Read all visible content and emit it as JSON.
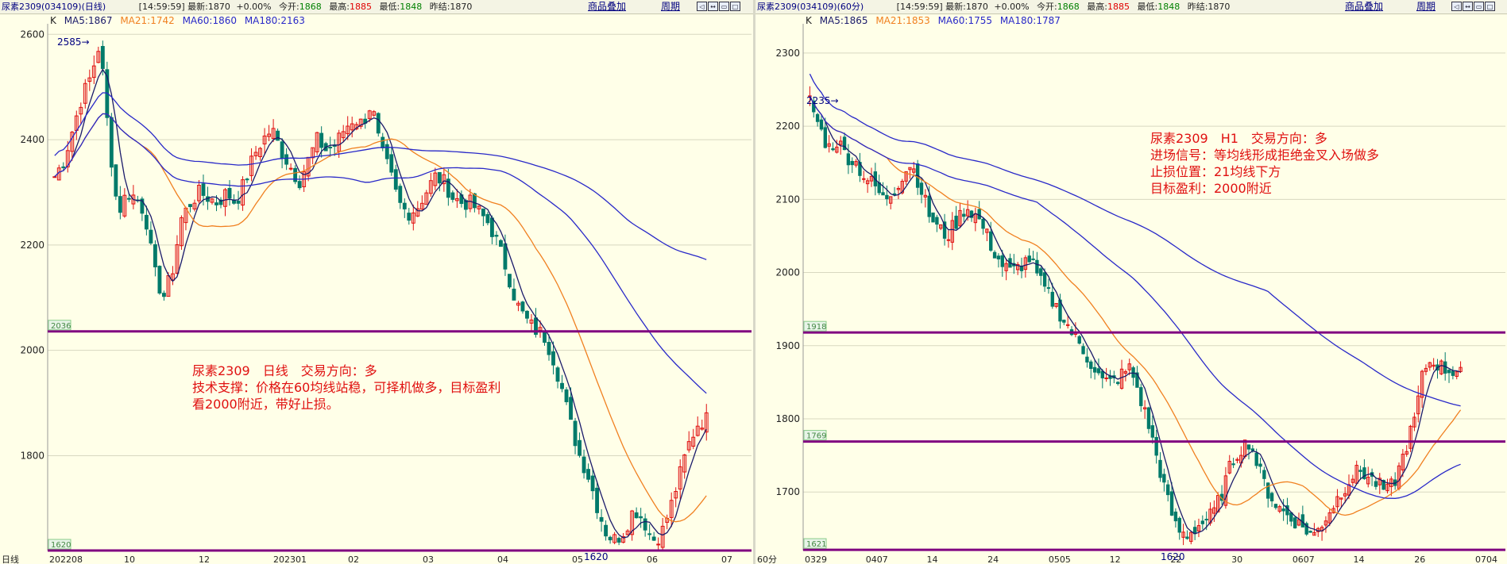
{
  "colors": {
    "bg": "#ffffe8",
    "up": "#e01010",
    "down": "#007a6a",
    "ma5": "#1a1a6a",
    "ma21": "#f08020",
    "ma60": "#2828c8",
    "ma180": "#2828c8",
    "hline": "#800080",
    "annotation": "#e01010"
  },
  "left": {
    "header": {
      "title": "尿素2309(034109)(日线)",
      "time": "[14:59:59]",
      "latest_label": "最新:",
      "latest": "1870",
      "change": "+0.00%",
      "open_label": "今开:",
      "open": "1868",
      "high_label": "最高:",
      "high": "1885",
      "low_label": "最低:",
      "low": "1848",
      "prev_label": "昨结:",
      "prev": "1870",
      "overlay_link": "商品叠加",
      "period_link": "周期"
    },
    "legend": {
      "k": "K",
      "ma5": "MA5:1867",
      "ma21": "MA21:1742",
      "ma60": "MA60:1860",
      "ma180": "MA180:2163"
    },
    "annotation": "尿素2309　日线　交易方向：多\n技术支撑：价格在60均线站稳，可择机做多，目标盈利\n看2000附近，带好止损。"
  },
  "right": {
    "header": {
      "title": "尿素2309(034109)(60分)",
      "time": "[14:59:59]",
      "latest_label": "最新:",
      "latest": "1870",
      "change": "+0.00%",
      "open_label": "今开:",
      "open": "1868",
      "high_label": "最高:",
      "high": "1885",
      "low_label": "最低:",
      "low": "1848",
      "prev_label": "昨结:",
      "prev": "1870",
      "overlay_link": "商品叠加",
      "period_link": "周期"
    },
    "legend": {
      "k": "K",
      "ma5": "MA5:1865",
      "ma21": "MA21:1853",
      "ma60": "MA60:1755",
      "ma180": "MA180:1787"
    },
    "annotation": "尿素2309　H1　交易方向：多\n进场信号：等均线形成拒绝金叉入场做多\n止损位置：21均线下方\n目标盈利：2000附近"
  },
  "chart_data": [
    {
      "type": "candlestick",
      "period": "日线",
      "ylim": [
        1620,
        2620
      ],
      "yticks": [
        1800,
        2000,
        2200,
        2400,
        2600
      ],
      "xticks": [
        "日线",
        "202208",
        "10",
        "12",
        "202301",
        "02",
        "03",
        "04",
        "05",
        "06",
        "07"
      ],
      "hlines": [
        {
          "value": 2036,
          "label": "2036"
        },
        {
          "value": 1620,
          "label": "1620"
        }
      ],
      "markers": [
        {
          "label": "2585",
          "value": 2585
        },
        {
          "label": "1620",
          "value": 1620
        }
      ],
      "close_points": [
        2330,
        2360,
        2420,
        2480,
        2520,
        2585,
        2400,
        2260,
        2300,
        2290,
        2260,
        2150,
        2100,
        2150,
        2250,
        2280,
        2300,
        2290,
        2280,
        2300,
        2280,
        2320,
        2370,
        2400,
        2420,
        2380,
        2350,
        2320,
        2360,
        2400,
        2380,
        2390,
        2420,
        2440,
        2430,
        2470,
        2380,
        2340,
        2280,
        2260,
        2270,
        2300,
        2330,
        2320,
        2290,
        2280,
        2280,
        2260,
        2240,
        2200,
        2150,
        2090,
        2060,
        2040,
        2030,
        1990,
        1930,
        1860,
        1800,
        1760,
        1700,
        1650,
        1640,
        1660,
        1700,
        1680,
        1640,
        1650,
        1700,
        1760,
        1820,
        1860,
        1870
      ]
    },
    {
      "type": "candlestick",
      "period": "60分",
      "ylim": [
        1620,
        2340
      ],
      "yticks": [
        1700,
        1800,
        1900,
        2000,
        2100,
        2200,
        2300
      ],
      "xticks": [
        "60分",
        "0329",
        "0407",
        "14",
        "24",
        "0505",
        "12",
        "22",
        "30",
        "0607",
        "14",
        "26",
        "0704"
      ],
      "hlines": [
        {
          "value": 1918,
          "label": "1918"
        },
        {
          "value": 1769,
          "label": "1769"
        },
        {
          "value": 1621,
          "label": "1621"
        }
      ],
      "markers": [
        {
          "label": "2235",
          "value": 2235
        },
        {
          "label": "1620",
          "value": 1620
        }
      ],
      "close_points": [
        2235,
        2200,
        2170,
        2180,
        2160,
        2150,
        2130,
        2120,
        2100,
        2110,
        2130,
        2150,
        2120,
        2080,
        2060,
        2050,
        2070,
        2090,
        2080,
        2060,
        2030,
        2010,
        2000,
        2010,
        2020,
        1990,
        1970,
        1950,
        1930,
        1910,
        1890,
        1870,
        1850,
        1850,
        1860,
        1870,
        1830,
        1790,
        1740,
        1690,
        1650,
        1640,
        1650,
        1660,
        1670,
        1700,
        1740,
        1760,
        1770,
        1730,
        1700,
        1680,
        1670,
        1660,
        1650,
        1640,
        1660,
        1680,
        1700,
        1720,
        1730,
        1720,
        1710,
        1700,
        1720,
        1760,
        1800,
        1870,
        1880,
        1870,
        1865,
        1870
      ]
    }
  ]
}
